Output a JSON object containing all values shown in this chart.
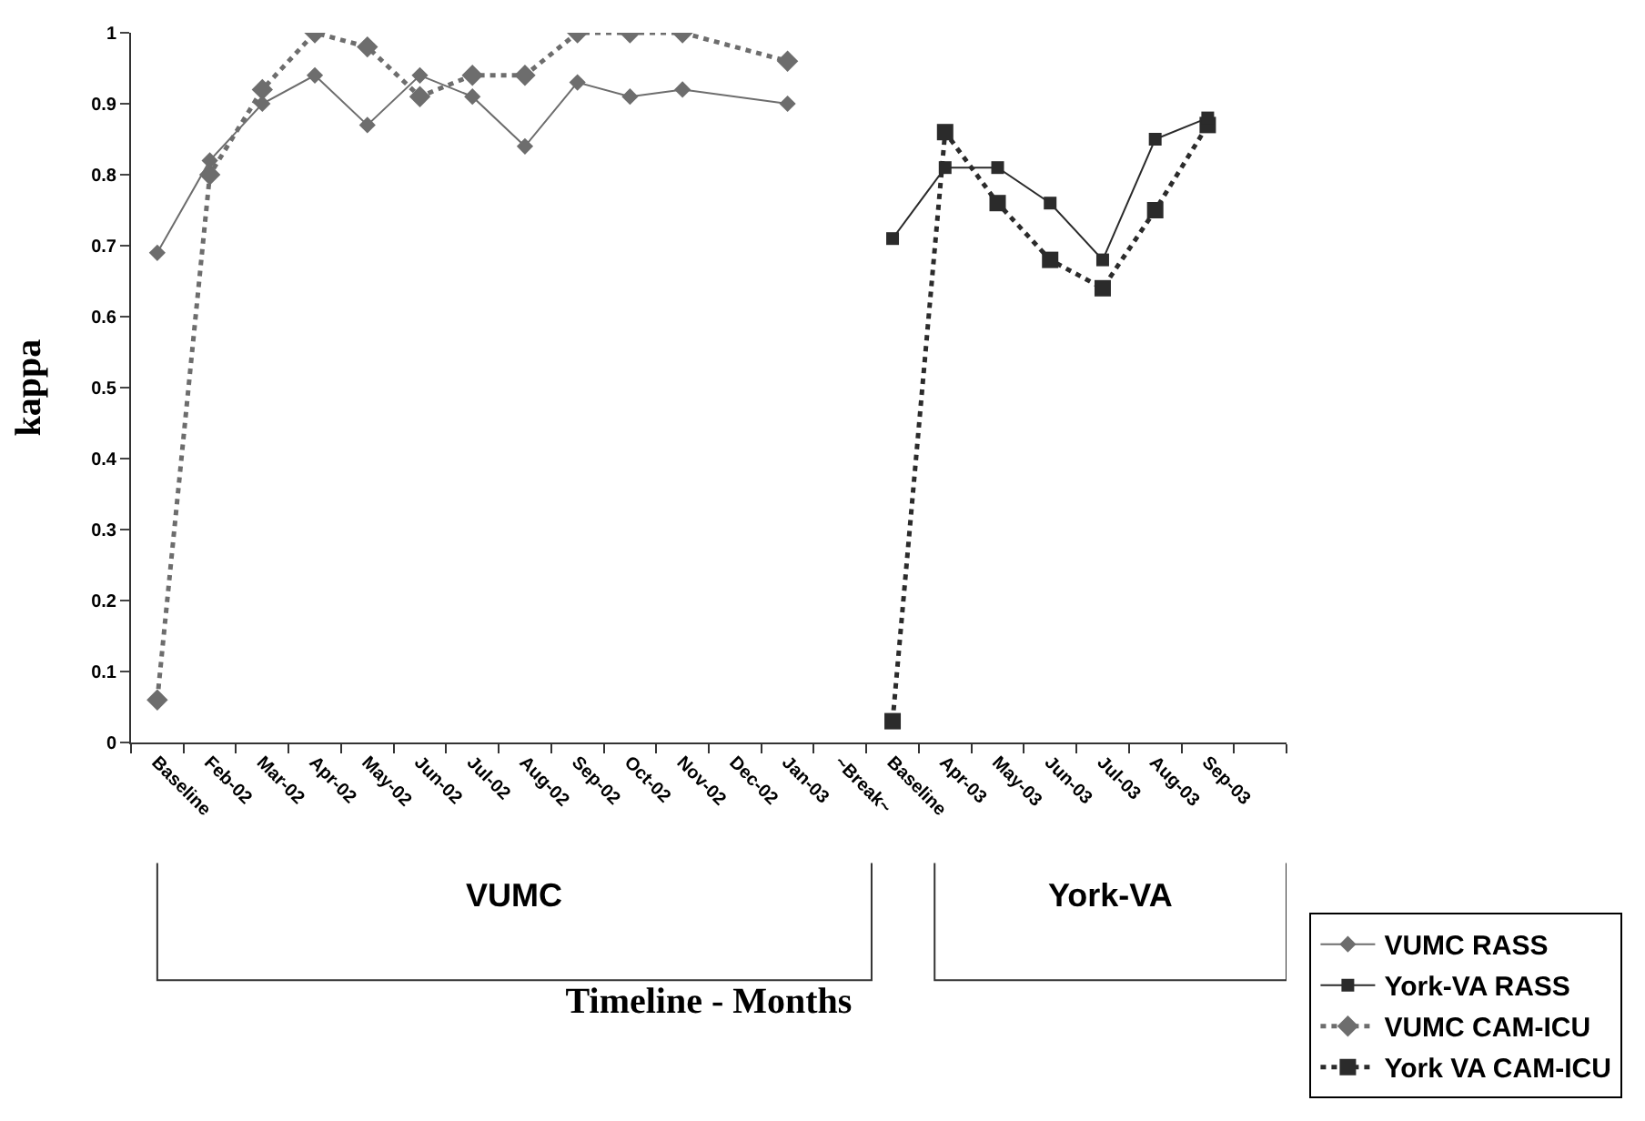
{
  "chart_data": {
    "type": "line",
    "xlabel": "Timeline - Months",
    "ylabel": "kappa",
    "categories": [
      "Baseline",
      "Feb-02",
      "Mar-02",
      "Apr-02",
      "May-02",
      "Jun-02",
      "Jul-02",
      "Aug-02",
      "Sep-02",
      "Oct-02",
      "Nov-02",
      "Dec-02",
      "Jan-03",
      "~Break~",
      "Baseline",
      "Apr-03",
      "May-03",
      "Jun-03",
      "Jul-03",
      "Aug-03",
      "Sep-03",
      null
    ],
    "series": [
      {
        "name": "VUMC RASS",
        "color": "#6d6d6d",
        "marker": "diamond",
        "line_style": "solid",
        "values": [
          0.69,
          0.82,
          0.9,
          0.94,
          0.87,
          0.94,
          0.91,
          0.84,
          0.93,
          0.91,
          0.92,
          null,
          0.9,
          null,
          null,
          null,
          null,
          null,
          null,
          null,
          null,
          null
        ]
      },
      {
        "name": "York-VA RASS",
        "color": "#2b2b2b",
        "marker": "square",
        "line_style": "solid",
        "values": [
          null,
          null,
          null,
          null,
          null,
          null,
          null,
          null,
          null,
          null,
          null,
          null,
          null,
          null,
          0.71,
          0.81,
          0.81,
          0.76,
          0.68,
          0.85,
          0.88,
          null
        ]
      },
      {
        "name": "VUMC CAM-ICU",
        "color": "#6d6d6d",
        "marker": "diamond",
        "line_style": "dotted",
        "values": [
          0.06,
          0.8,
          0.92,
          1.0,
          0.98,
          0.91,
          0.94,
          0.94,
          1.0,
          1.0,
          1.0,
          null,
          0.96,
          null,
          null,
          null,
          null,
          null,
          null,
          null,
          null,
          null
        ]
      },
      {
        "name": "York VA CAM-ICU",
        "color": "#2b2b2b",
        "marker": "square",
        "line_style": "dotted",
        "values": [
          null,
          null,
          null,
          null,
          null,
          null,
          null,
          null,
          null,
          null,
          null,
          null,
          null,
          null,
          0.03,
          0.86,
          0.76,
          0.68,
          0.64,
          0.75,
          0.87,
          null
        ]
      }
    ],
    "ylim": [
      0,
      1
    ],
    "yticks": [
      0,
      0.1,
      0.2,
      0.3,
      0.4,
      0.5,
      0.6,
      0.7,
      0.8,
      0.9,
      1
    ],
    "grid": false,
    "legend": "bottom right",
    "annotations": [
      "VUMC",
      "York-VA"
    ]
  }
}
